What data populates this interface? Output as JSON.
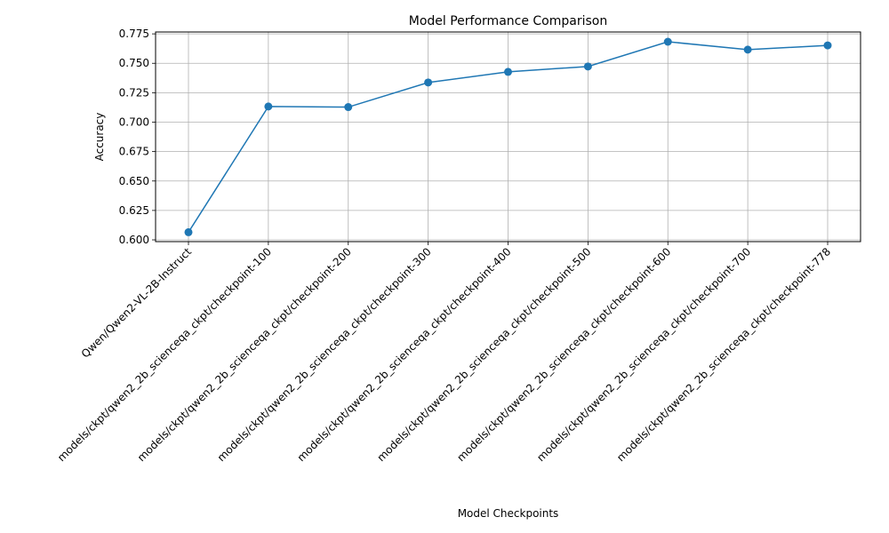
{
  "chart_data": {
    "type": "line",
    "title": "Model Performance Comparison",
    "xlabel": "Model Checkpoints",
    "ylabel": "Accuracy",
    "categories": [
      "Qwen/Qwen2-VL-2B-Instruct",
      "models/ckpt/qwen2_2b_scienceqa_ckpt/checkpoint-100",
      "models/ckpt/qwen2_2b_scienceqa_ckpt/checkpoint-200",
      "models/ckpt/qwen2_2b_scienceqa_ckpt/checkpoint-300",
      "models/ckpt/qwen2_2b_scienceqa_ckpt/checkpoint-400",
      "models/ckpt/qwen2_2b_scienceqa_ckpt/checkpoint-500",
      "models/ckpt/qwen2_2b_scienceqa_ckpt/checkpoint-600",
      "models/ckpt/qwen2_2b_scienceqa_ckpt/checkpoint-700",
      "models/ckpt/qwen2_2b_scienceqa_ckpt/checkpoint-778"
    ],
    "values": [
      0.6065,
      0.7133,
      0.7128,
      0.7337,
      0.7427,
      0.7473,
      0.7683,
      0.7616,
      0.7652
    ],
    "ylim": [
      0.5985,
      0.7766
    ],
    "yticks": [
      "0.600",
      "0.625",
      "0.650",
      "0.675",
      "0.700",
      "0.725",
      "0.750",
      "0.775"
    ],
    "grid": true,
    "line_color": "#1f77b4",
    "grid_color": "#b0b0b0",
    "marker": "circle"
  }
}
